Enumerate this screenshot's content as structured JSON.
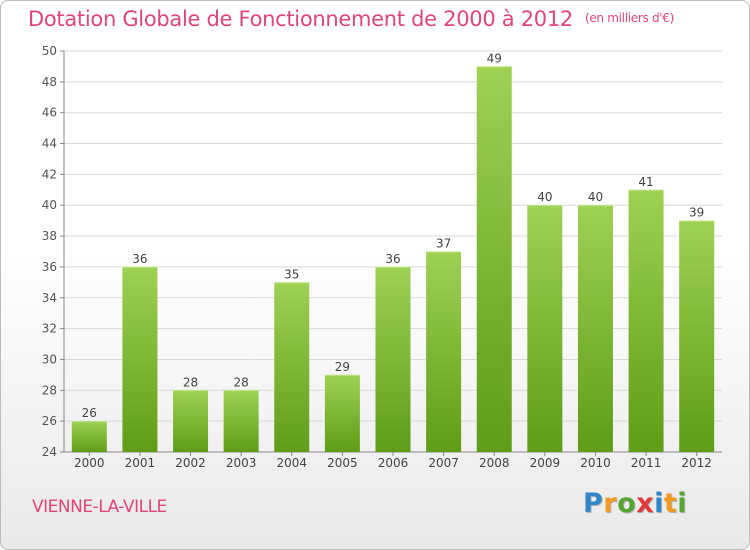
{
  "header": {
    "title": "Dotation Globale de Fonctionnement de 2000 à 2012",
    "unit": "(en milliers d'€)"
  },
  "footer": {
    "commune": "VIENNE-LA-VILLE",
    "logo_text": "Proxiti",
    "logo_letters": [
      {
        "char": "P",
        "color": "#2f86c8"
      },
      {
        "char": "r",
        "color": "#f29a1f"
      },
      {
        "char": "o",
        "color": "#56a531"
      },
      {
        "char": "x",
        "color": "#e03a3a"
      },
      {
        "char": "i",
        "color": "#2f86c8"
      },
      {
        "char": "t",
        "color": "#f29a1f"
      },
      {
        "char": "i",
        "color": "#56a531"
      }
    ]
  },
  "colors": {
    "title": "#e0457b",
    "bar_top": "#9ed154",
    "bar_bottom": "#5f9c17",
    "grid": "#d9d9d9",
    "axis": "#888888"
  },
  "chart_data": {
    "type": "bar",
    "categories": [
      "2000",
      "2001",
      "2002",
      "2003",
      "2004",
      "2005",
      "2006",
      "2007",
      "2008",
      "2009",
      "2010",
      "2011",
      "2012"
    ],
    "values": [
      26,
      36,
      28,
      28,
      35,
      29,
      36,
      37,
      49,
      40,
      40,
      41,
      39
    ],
    "title": "Dotation Globale de Fonctionnement de 2000 à 2012",
    "ylim": [
      24,
      50
    ],
    "yticks": [
      24,
      26,
      28,
      30,
      32,
      34,
      36,
      38,
      40,
      42,
      44,
      46,
      48,
      50
    ],
    "grid": true,
    "data_labels": true
  }
}
